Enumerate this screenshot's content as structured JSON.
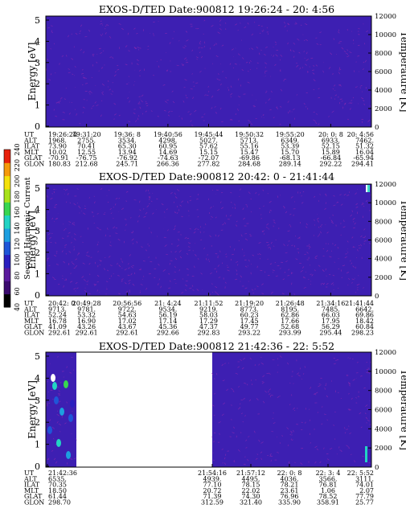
{
  "figure": {
    "colorbar": {
      "label": "Second Harmonic Current",
      "ticks": [
        "40",
        "60",
        "80",
        "100",
        "120",
        "140",
        "160",
        "180",
        "200",
        "220",
        "240"
      ],
      "colors": [
        "#000000",
        "#3a0a6e",
        "#5b1b9e",
        "#2a1fbf",
        "#1f56d8",
        "#1d9fe0",
        "#22d3c4",
        "#38d650",
        "#a8e21a",
        "#f4e10c",
        "#f59a0c",
        "#e8200c"
      ]
    },
    "left_axis_label": "Energy [eV]",
    "right_axis_label": "Temperature [K]",
    "energy_ticks": [
      "0",
      "1",
      "2",
      "3",
      "4",
      "5"
    ],
    "temp_ticks": [
      "0",
      "2000",
      "4000",
      "6000",
      "8000",
      "10000",
      "12000"
    ],
    "row_labels": [
      "UT",
      "ALT",
      "ILAT",
      "MLT",
      "GLAT",
      "GLON"
    ],
    "background_color": "#3d1fb2",
    "sparkle_color": "#9a2bb0"
  },
  "panels": [
    {
      "title": "EXOS-D/TED   Date:900812  19:26:24 - 20: 4:56",
      "columns": [
        [
          "19:26:24",
          "1968.",
          "73.90",
          "10.02",
          "-70.91",
          "180.83"
        ],
        [
          "19:31:20",
          "2755.",
          "70.41",
          "12.55",
          "-76.75",
          "212.68"
        ],
        [
          "19:36: 8",
          "3534.",
          "65.30",
          "13.94",
          "-76.92",
          "245.71"
        ],
        [
          "19:40:56",
          "4298.",
          "60.95",
          "14.69",
          "-74.63",
          "266.36"
        ],
        [
          "19:45:44",
          "5027.",
          "57.62",
          "15.15",
          "-72.07",
          "277.82"
        ],
        [
          "19:50:32",
          "5713.",
          "55.16",
          "15.47",
          "-69.86",
          "284.68"
        ],
        [
          "19:55:20",
          "6349.",
          "53.39",
          "15.70",
          "-68.13",
          "289.14"
        ],
        [
          "20: 0: 8",
          "6933.",
          "52.15",
          "15.89",
          "-66.84",
          "292.22"
        ],
        [
          "20: 4:56",
          "7462.",
          "51.32",
          "16.04",
          "-65.94",
          "294.41"
        ]
      ]
    },
    {
      "title": "EXOS-D/TED   Date:900812  20:42: 0 - 21:41:44",
      "columns": [
        [
          "20:42: 0",
          "9713.",
          "52.24",
          "16.78",
          "41.09",
          "292.61"
        ],
        [
          "20:49:28",
          "9781.",
          "53.32",
          "16.90",
          "43.26",
          "292.61"
        ],
        [
          "20:56:56",
          "9722.",
          "54.63",
          "17.02",
          "43.67",
          "292.61"
        ],
        [
          "21: 4:24",
          "9534.",
          "56.19",
          "17.14",
          "45.36",
          "292.66"
        ],
        [
          "21:11:52",
          "9219.",
          "58.03",
          "17.29",
          "47.37",
          "292.83"
        ],
        [
          "21:19:20",
          "8773.",
          "60.23",
          "17.45",
          "49.77",
          "293.22"
        ],
        [
          "21:26:48",
          "8195.",
          "62.86",
          "17.66",
          "52.68",
          "293.99"
        ],
        [
          "21:34:16",
          "7485.",
          "66.03",
          "17.95",
          "56.29",
          "295.44"
        ],
        [
          "21:41:44",
          "6642.",
          "69.86",
          "18.42",
          "60.84",
          "298.23"
        ]
      ]
    },
    {
      "title": "EXOS-D/TED   Date:900812  21:42:36 - 22: 5:52",
      "columns": [
        [
          "21:42:36",
          "6535.",
          "70.35",
          "18.50",
          "61.44",
          "298.70"
        ],
        [
          "21:54:16",
          "4939.",
          "77.10",
          "20.72",
          "71.39",
          "312.59"
        ],
        [
          "21:57:12",
          "4495.",
          "78.15",
          "22.02",
          "74.30",
          "321.40"
        ],
        [
          "22: 0: 8",
          "4036.",
          "78.21",
          "23.61",
          "76.96",
          "335.90"
        ],
        [
          "22: 3: 4",
          "3566.",
          "76.81",
          "1.06",
          "78.52",
          "358.91"
        ],
        [
          "22: 5:52",
          "3111.",
          "74.01",
          "2.07",
          "77.79",
          "25.77"
        ]
      ]
    }
  ]
}
